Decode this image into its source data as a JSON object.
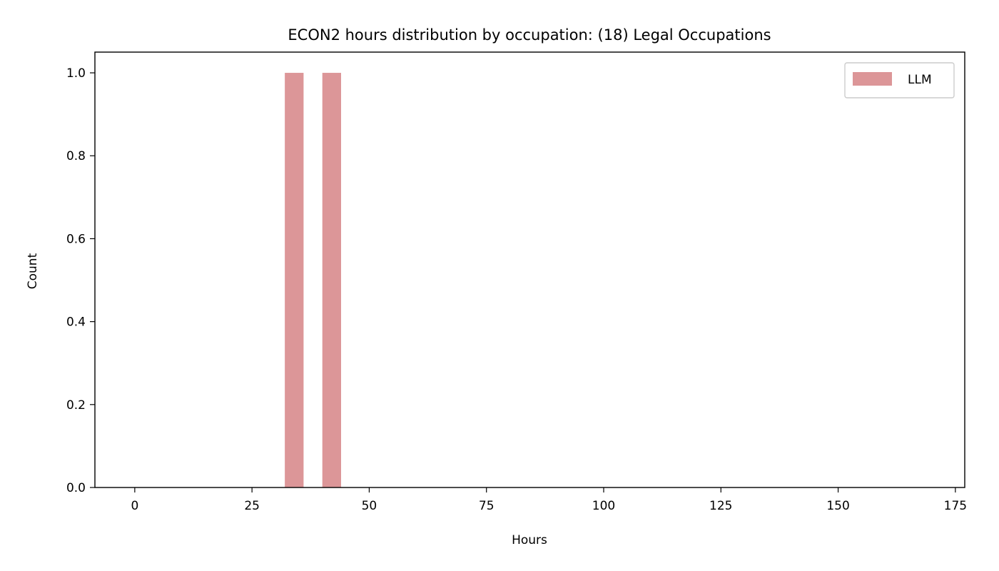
{
  "chart_data": {
    "type": "bar",
    "title": "ECON2 hours distribution by occupation: (18) Legal Occupations",
    "xlabel": "Hours",
    "ylabel": "Count",
    "xlim": [
      -8.5,
      177
    ],
    "ylim": [
      0,
      1.05
    ],
    "xticks": [
      0,
      25,
      50,
      75,
      100,
      125,
      150,
      175
    ],
    "xtick_labels": [
      "0",
      "25",
      "50",
      "75",
      "100",
      "125",
      "150",
      "175"
    ],
    "yticks": [
      0.0,
      0.2,
      0.4,
      0.6,
      0.8,
      1.0
    ],
    "ytick_labels": [
      "0.0",
      "0.2",
      "0.4",
      "0.6",
      "0.8",
      "1.0"
    ],
    "grid": false,
    "legend_position": "top-right",
    "series": [
      {
        "name": "LLM",
        "color": "#dc9698",
        "bins": [
          {
            "x0": 32,
            "x1": 36,
            "value": 1
          },
          {
            "x0": 40,
            "x1": 44,
            "value": 1
          }
        ]
      }
    ]
  }
}
